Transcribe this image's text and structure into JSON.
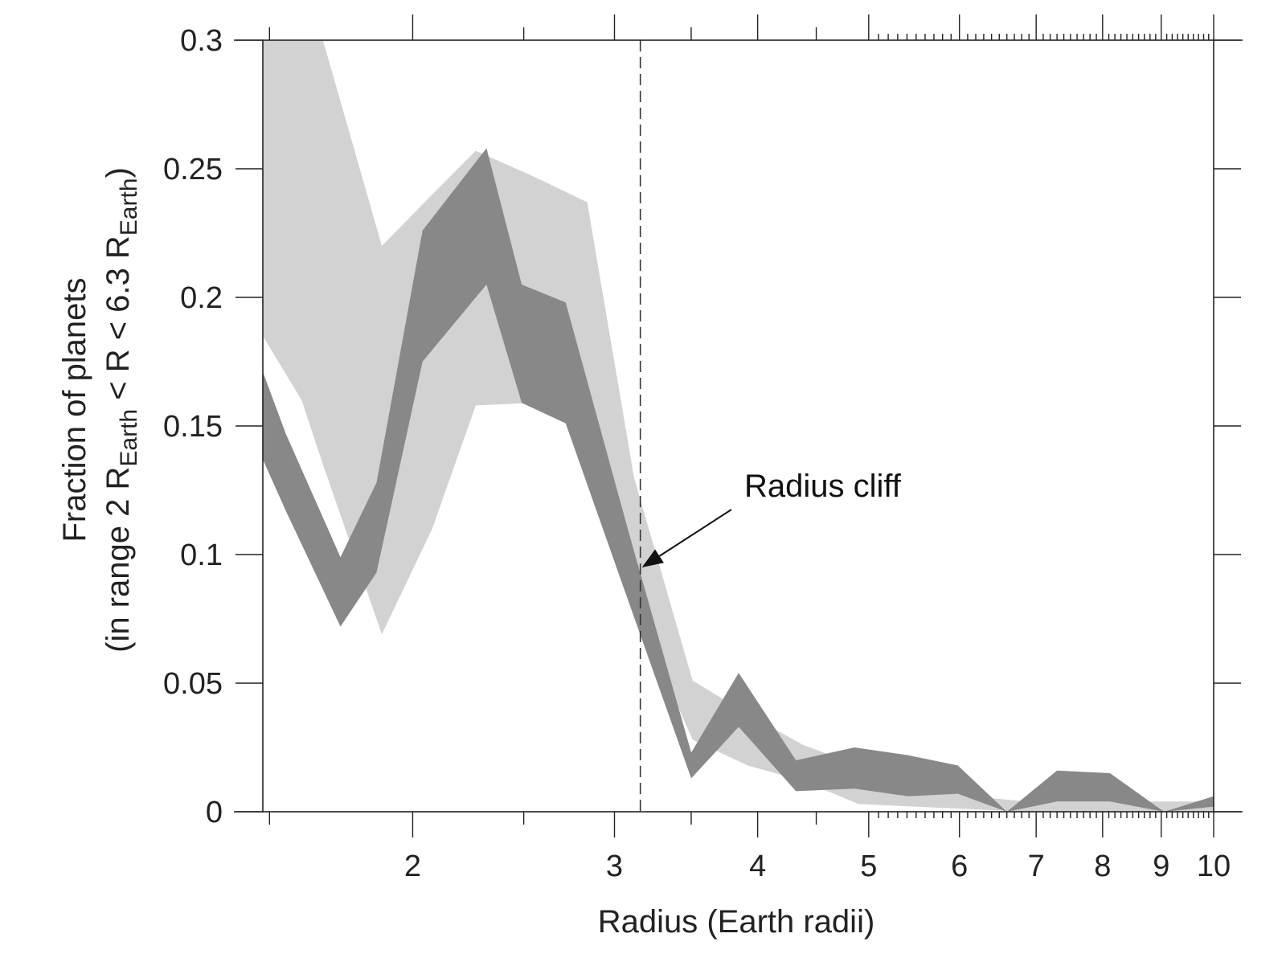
{
  "chart_data": {
    "type": "area",
    "xscale": "log",
    "xlim": [
      1.48,
      10
    ],
    "ylim": [
      0,
      0.3
    ],
    "xlabel": "Radius (Earth radii)",
    "ylabel": {
      "line1": "Fraction of planets",
      "line2_a": "(in range 2 R",
      "line2_sub1": "Earth",
      "line2_b": " < R < 6.3 R",
      "line2_sub2": "Earth",
      "line2_c": ")"
    },
    "xticks": [
      {
        "value": 2,
        "label": "2"
      },
      {
        "value": 3,
        "label": "3"
      },
      {
        "value": 4,
        "label": "4"
      },
      {
        "value": 5,
        "label": "5"
      },
      {
        "value": 6,
        "label": "6"
      },
      {
        "value": 7,
        "label": "7"
      },
      {
        "value": 8,
        "label": "8"
      },
      {
        "value": 9,
        "label": "9"
      },
      {
        "value": 10,
        "label": "10"
      }
    ],
    "yticks": [
      {
        "value": 0,
        "label": "0"
      },
      {
        "value": 0.05,
        "label": "0.05"
      },
      {
        "value": 0.1,
        "label": "0.1"
      },
      {
        "value": 0.15,
        "label": "0.15"
      },
      {
        "value": 0.2,
        "label": "0.2"
      },
      {
        "value": 0.25,
        "label": "0.25"
      },
      {
        "value": 0.3,
        "label": "0.3"
      }
    ],
    "vline": 3.16,
    "grid": false,
    "series": [
      {
        "fill": "#d2d2d2",
        "x": [
          1.48,
          1.6,
          1.67,
          1.88,
          2.08,
          2.27,
          2.55,
          2.84,
          3.12,
          3.51,
          3.92,
          4.38,
          4.9,
          5.48,
          6.13,
          6.86,
          7.67,
          8.57,
          9.58,
          10
        ],
        "upper": [
          0.3,
          0.3,
          0.3,
          0.22,
          0.24,
          0.257,
          0.247,
          0.237,
          0.13,
          0.051,
          0.038,
          0.026,
          0.018,
          0.01,
          0.006,
          0.004,
          0.004,
          0.004,
          0.004,
          0.004
        ],
        "lower": [
          0.185,
          0.16,
          0.135,
          0.069,
          0.11,
          0.158,
          0.159,
          0.159,
          0.08,
          0.028,
          0.018,
          0.012,
          0.003,
          0.002,
          0.001,
          0.0,
          0.0,
          0.0,
          0.0,
          0.0
        ]
      },
      {
        "fill": "#888888",
        "x": [
          1.48,
          1.55,
          1.73,
          1.86,
          2.04,
          2.32,
          2.49,
          2.72,
          3.09,
          3.5,
          3.85,
          4.32,
          4.86,
          5.41,
          5.98,
          6.6,
          7.3,
          8.12,
          9.05,
          10
        ],
        "upper": [
          0.171,
          0.147,
          0.099,
          0.128,
          0.226,
          0.258,
          0.205,
          0.198,
          0.108,
          0.023,
          0.054,
          0.02,
          0.025,
          0.022,
          0.018,
          0.0,
          0.016,
          0.015,
          0.0,
          0.006
        ],
        "lower": [
          0.137,
          0.117,
          0.072,
          0.093,
          0.175,
          0.205,
          0.159,
          0.151,
          0.081,
          0.013,
          0.033,
          0.008,
          0.009,
          0.006,
          0.007,
          0.0,
          0.004,
          0.004,
          0.0,
          0.002
        ]
      }
    ],
    "annotation": {
      "text": "Radius cliff",
      "point_x": 3.17,
      "point_y": 0.095
    }
  }
}
